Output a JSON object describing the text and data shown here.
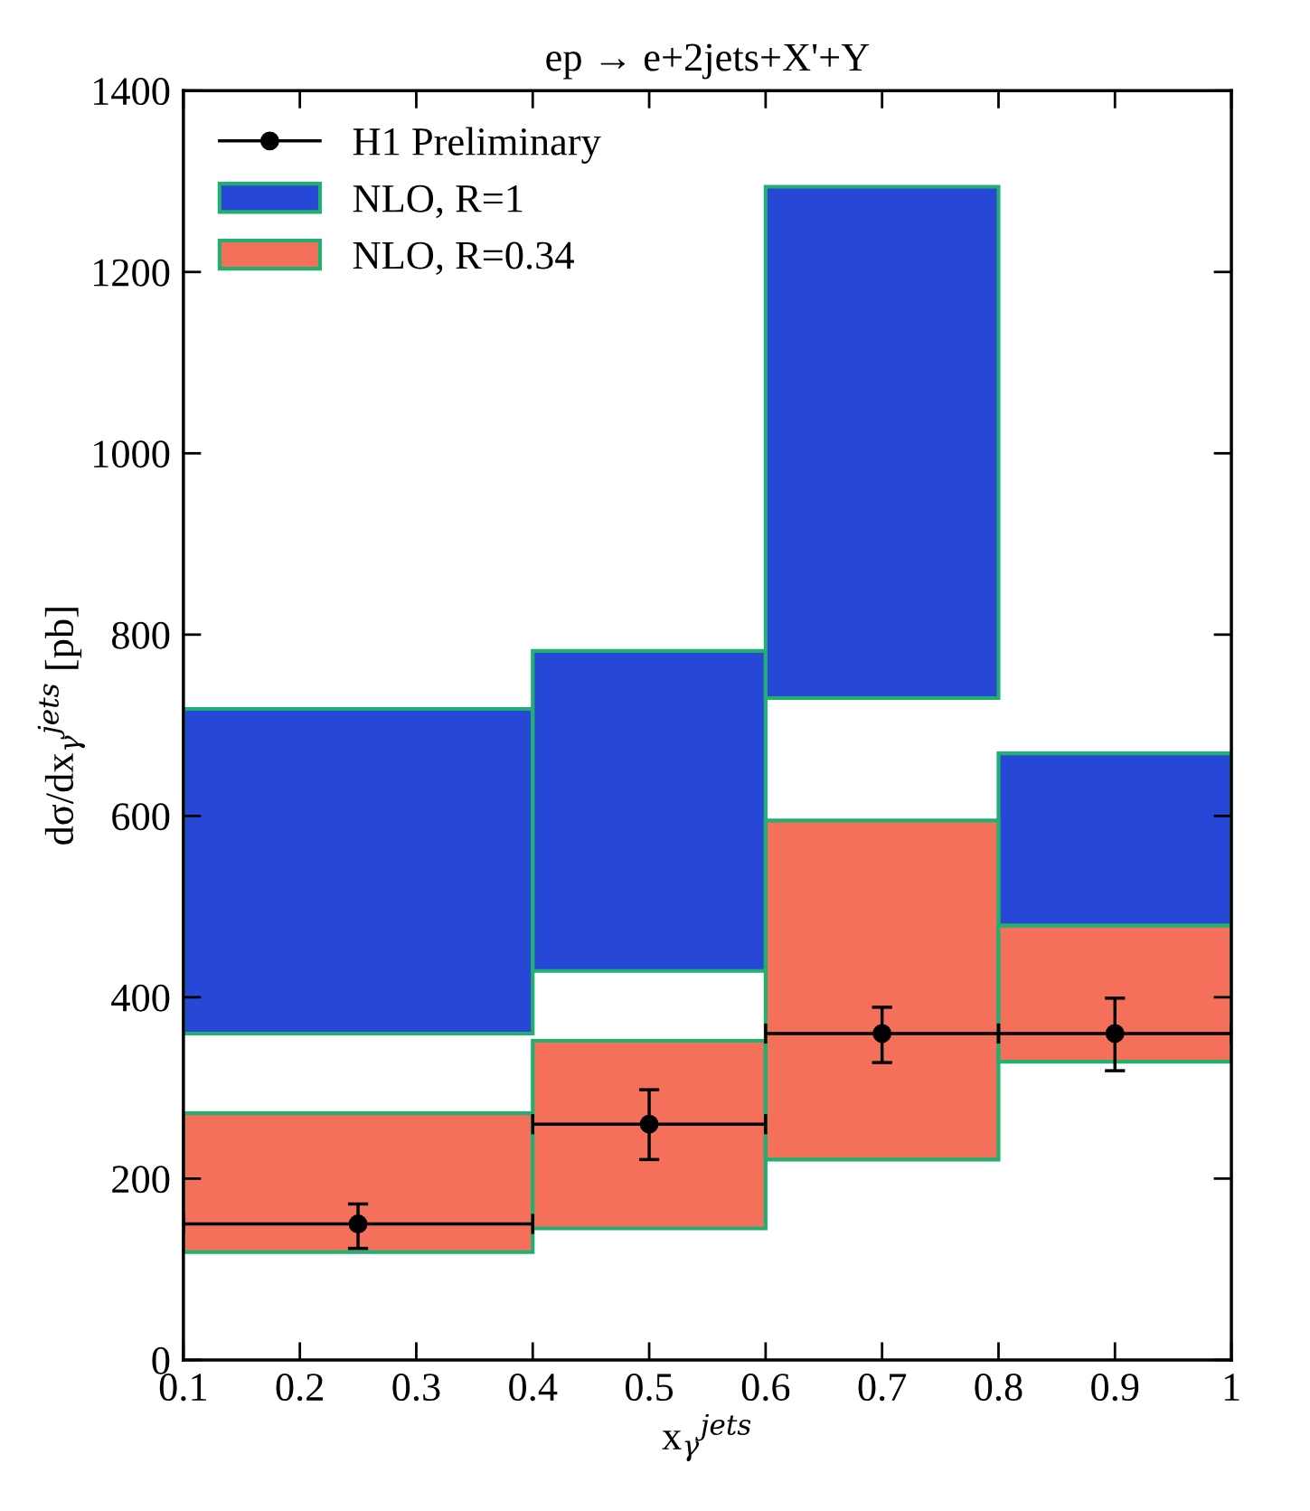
{
  "chart_data": {
    "type": "histogram",
    "title": "ep → e+2jets+X'+Y",
    "xlabel": "x$_{γ}$$^{jets}$",
    "ylabel": "dσ/dx$_{γ}$$^{jets}$ [pb]",
    "xlim": [
      0.1,
      1
    ],
    "xticks": [
      0.1,
      0.2,
      0.3,
      0.4,
      0.5,
      0.6,
      0.7,
      0.8,
      0.9,
      1
    ],
    "ylim": [
      0,
      1400
    ],
    "yticks": [
      0,
      200,
      400,
      600,
      800,
      1000,
      1200,
      1400
    ],
    "legend": "top left",
    "series": [
      {
        "name": "NLO, R=1",
        "color": "#2747d6",
        "bins": [
          0.1,
          0.4,
          0.6,
          0.8,
          1.0
        ],
        "base": [
          360,
          429,
          730,
          479
        ],
        "values": [
          358,
          353,
          564,
          190
        ]
      },
      {
        "name": "NLO, R=0.34",
        "color": "#f4705a",
        "bins": [
          0.1,
          0.4,
          0.6,
          0.8,
          1.0
        ],
        "base": [
          119,
          145,
          221,
          329
        ],
        "values": [
          153,
          207,
          374,
          150
        ]
      },
      {
        "name": "H1 Preliminary",
        "type": "scatter",
        "color": "#000000",
        "marker": "circle",
        "x": [
          0.25,
          0.5,
          0.7,
          0.9
        ],
        "values": [
          150,
          260,
          360,
          360
        ],
        "errors": [
          [
            123,
            172
          ],
          [
            221,
            298
          ],
          [
            328,
            389
          ],
          [
            319,
            399
          ]
        ],
        "xerrors": [
          [
            0.1,
            0.4
          ],
          [
            0.4,
            0.6
          ],
          [
            0.6,
            0.8
          ],
          [
            0.8,
            1.0
          ]
        ]
      }
    ]
  }
}
